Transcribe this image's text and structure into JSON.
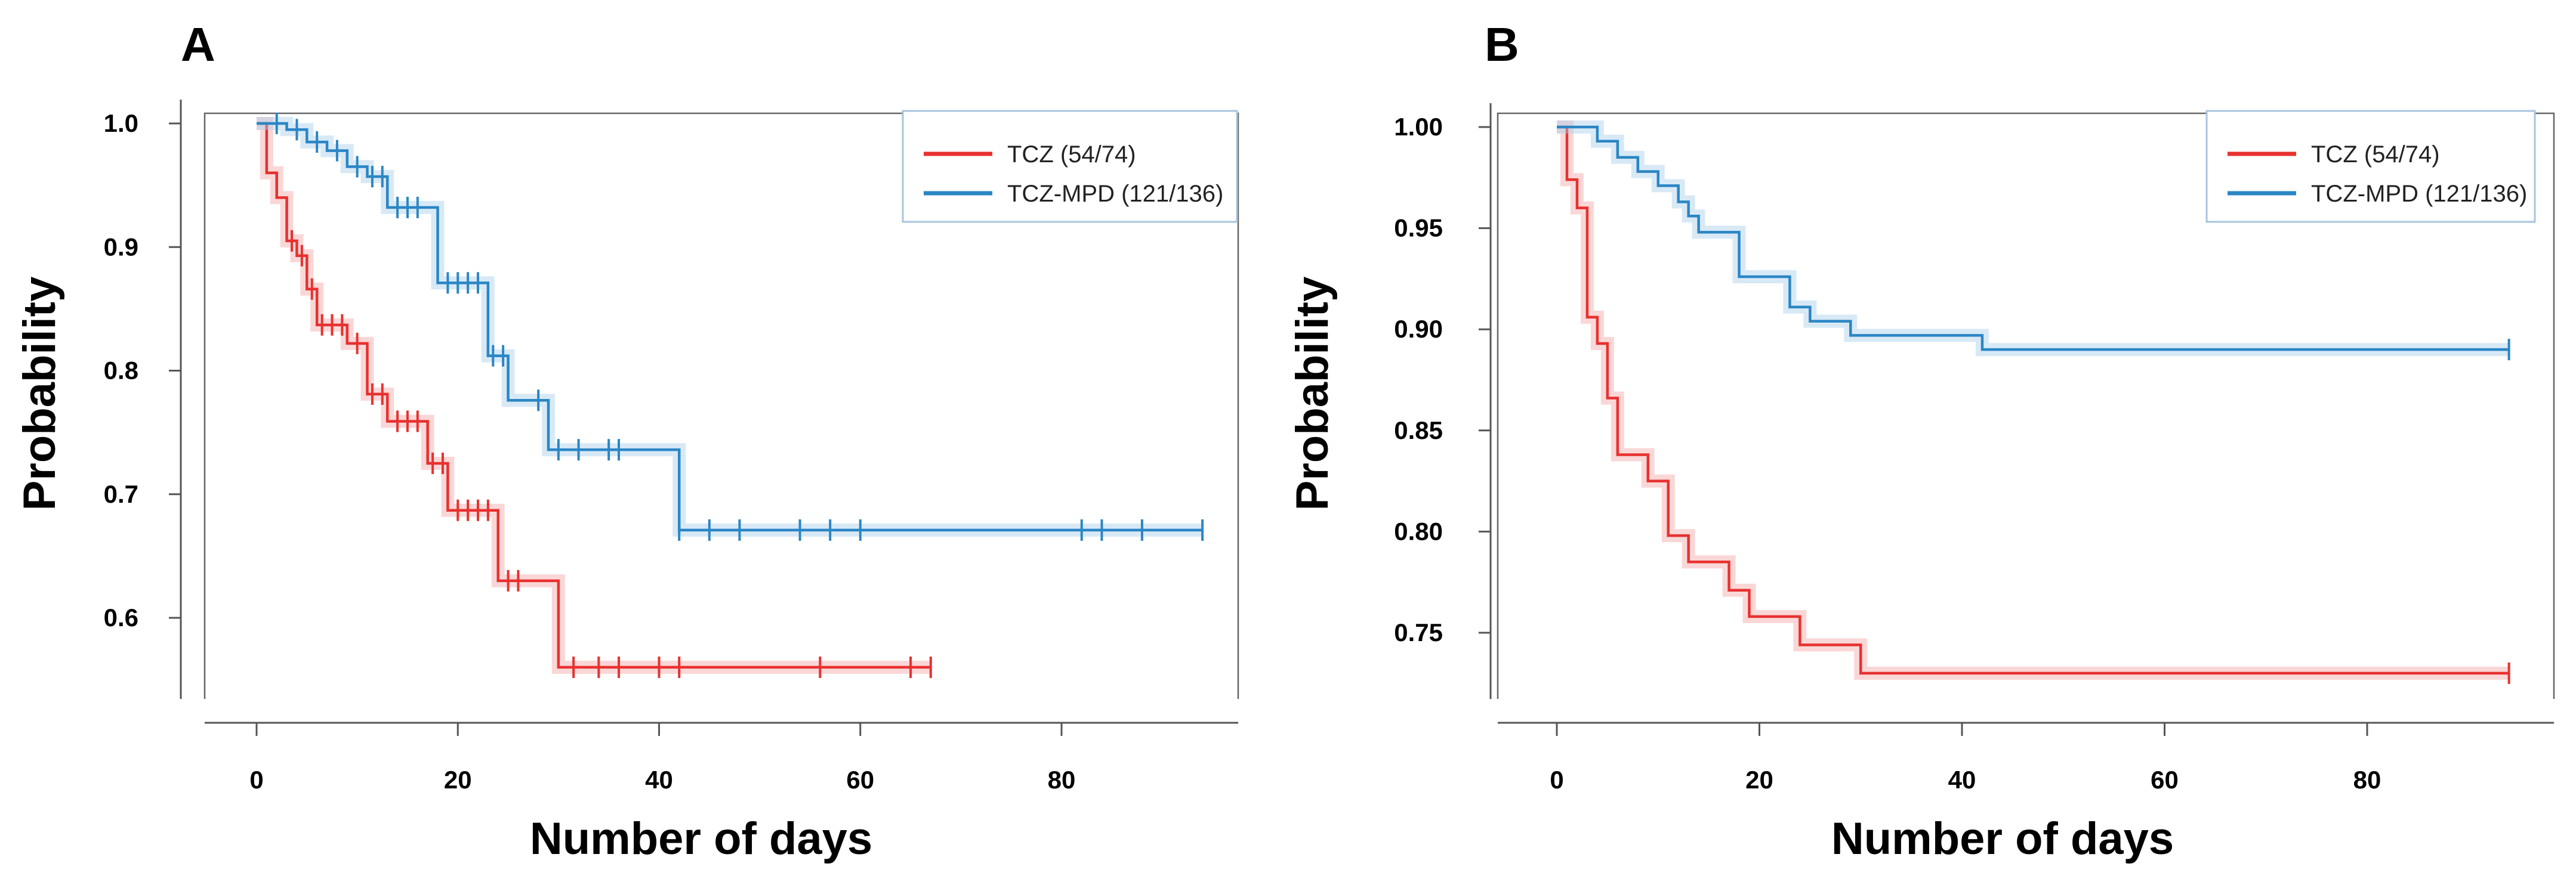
{
  "chart_data": [
    {
      "panel": "A",
      "type": "line",
      "step": true,
      "xlabel": "Number of days",
      "ylabel": "Probability",
      "xlim": [
        -4,
        99
      ],
      "ylim": [
        0.535,
        1.015
      ],
      "xticks": [
        0,
        20,
        40,
        60,
        80
      ],
      "xtick_labels": [
        "0",
        "20",
        "40",
        "60",
        "80"
      ],
      "yticks": [
        1.0,
        0.9,
        0.8,
        0.7,
        0.6
      ],
      "ytick_labels": [
        "1.0",
        "0.9",
        "0.8",
        "0.7",
        "0.6"
      ],
      "legend_position": "top-right",
      "series": [
        {
          "name": "TCZ",
          "label": "TCZ (54/74)",
          "color": "#e8312f",
          "band_color": "#f4a6a6",
          "x": [
            0,
            1,
            2,
            3,
            4,
            5,
            6,
            9,
            11,
            13,
            17,
            19,
            24,
            30,
            67
          ],
          "y": [
            1.0,
            0.96,
            0.94,
            0.905,
            0.893,
            0.866,
            0.837,
            0.822,
            0.781,
            0.759,
            0.725,
            0.687,
            0.63,
            0.56,
            0.56
          ],
          "censor_x": [
            3.5,
            4.5,
            5.5,
            6.5,
            7.5,
            8.5,
            10,
            11.5,
            12.5,
            14,
            15,
            16,
            17.5,
            18.5,
            20,
            21,
            22,
            23,
            25,
            26,
            31.5,
            34,
            36,
            40,
            42,
            56,
            65,
            67
          ]
        },
        {
          "name": "TCZ-MPD",
          "label": "TCZ-MPD (121/136)",
          "color": "#2b86c5",
          "band_color": "#a8cfea",
          "x": [
            0,
            3,
            5,
            7,
            9,
            11,
            13,
            18,
            23,
            25,
            29,
            42,
            94
          ],
          "y": [
            1.0,
            0.995,
            0.985,
            0.978,
            0.965,
            0.957,
            0.932,
            0.871,
            0.812,
            0.776,
            0.736,
            0.671,
            0.671
          ],
          "censor_x": [
            2,
            4,
            6,
            8,
            10,
            11.5,
            12.5,
            14,
            15,
            16,
            19,
            20,
            21,
            22,
            23.5,
            24.5,
            28,
            30,
            32,
            35,
            36,
            42,
            45,
            48,
            54,
            57,
            60,
            82,
            84,
            88,
            94
          ]
        }
      ]
    },
    {
      "panel": "B",
      "type": "line",
      "step": true,
      "xlabel": "Number of days",
      "ylabel": "Probability",
      "xlim": [
        -4,
        99
      ],
      "ylim": [
        0.715,
        1.012
      ],
      "xticks": [
        0,
        20,
        40,
        60,
        80
      ],
      "xtick_labels": [
        "0",
        "20",
        "40",
        "60",
        "80"
      ],
      "yticks": [
        1.0,
        0.95,
        0.9,
        0.85,
        0.8,
        0.75
      ],
      "ytick_labels": [
        "1.00",
        "0.95",
        "0.90",
        "0.85",
        "0.80",
        "0.75"
      ],
      "legend_position": "top-right",
      "series": [
        {
          "name": "TCZ",
          "label": "TCZ (54/74)",
          "color": "#e8312f",
          "band_color": "#f4a6a6",
          "x": [
            0,
            1,
            2,
            3,
            4,
            5,
            6,
            9,
            11,
            13,
            17,
            19,
            24,
            30,
            94
          ],
          "y": [
            1.0,
            0.974,
            0.96,
            0.906,
            0.893,
            0.866,
            0.838,
            0.825,
            0.798,
            0.785,
            0.771,
            0.758,
            0.744,
            0.73,
            0.73
          ],
          "censor_x": [
            94
          ]
        },
        {
          "name": "TCZ-MPD",
          "label": "TCZ-MPD (121/136)",
          "color": "#2b86c5",
          "band_color": "#a8cfea",
          "x": [
            0,
            4,
            6,
            8,
            10,
            12,
            13,
            14,
            18,
            23,
            25,
            29,
            42,
            94
          ],
          "y": [
            1.0,
            0.993,
            0.985,
            0.978,
            0.971,
            0.963,
            0.956,
            0.948,
            0.926,
            0.911,
            0.904,
            0.897,
            0.89,
            0.89
          ],
          "censor_x": [
            94
          ]
        }
      ]
    }
  ]
}
